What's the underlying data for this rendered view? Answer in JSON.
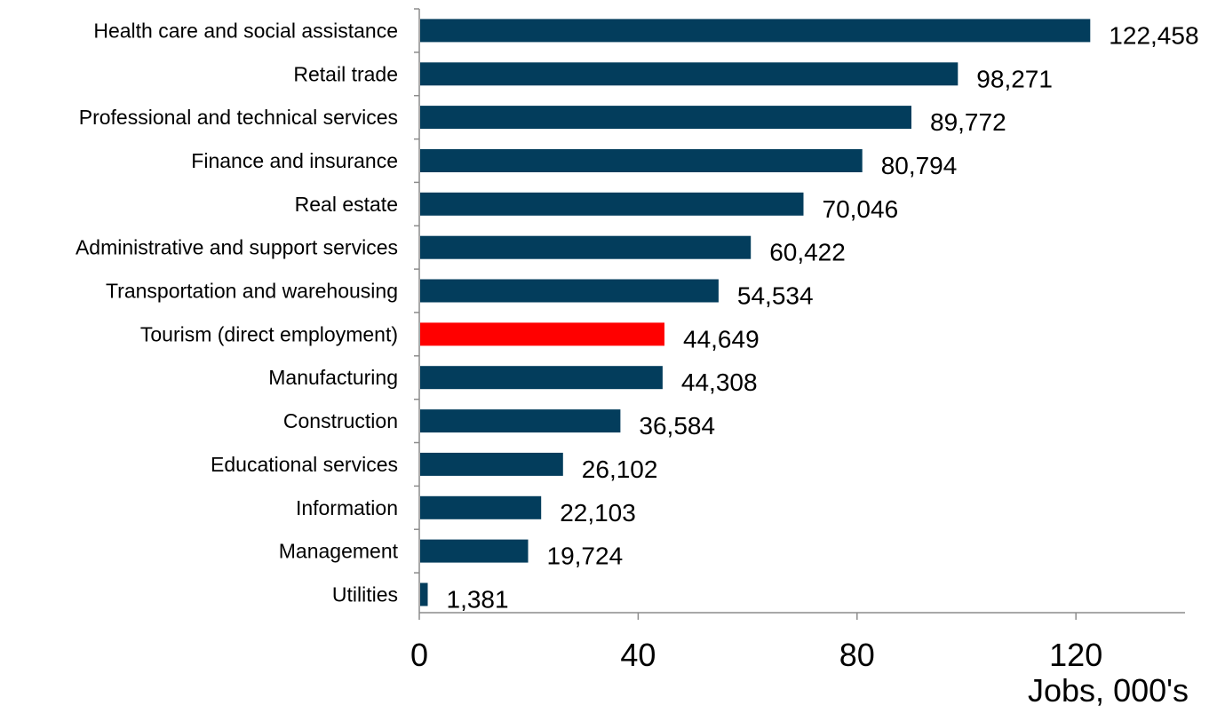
{
  "chart_data": {
    "type": "bar",
    "orientation": "horizontal",
    "categories": [
      "Health care and social assistance",
      "Retail trade",
      "Professional and technical services",
      "Finance and insurance",
      "Real estate",
      "Administrative and support services",
      "Transportation and warehousing",
      "Tourism (direct employment)",
      "Manufacturing",
      "Construction",
      "Educational services",
      "Information",
      "Management",
      "Utilities"
    ],
    "values": [
      122458,
      98271,
      89772,
      80794,
      70046,
      60422,
      54534,
      44649,
      44308,
      36584,
      26102,
      22103,
      19724,
      1381
    ],
    "value_labels": [
      "122,458",
      "98,271",
      "89,772",
      "80,794",
      "70,046",
      "60,422",
      "54,534",
      "44,649",
      "44,308",
      "36,584",
      "26,102",
      "22,103",
      "19,724",
      "1,381"
    ],
    "highlight_category": "Tourism (direct employment)",
    "colors": {
      "bar": "#033d5c",
      "highlight": "#ff0000",
      "axis": "#8c8c8c"
    },
    "x_axis": {
      "label": "Jobs, 000's",
      "ticks": [
        0,
        40,
        80,
        120
      ],
      "tick_labels": [
        "0",
        "40",
        "80",
        "120"
      ],
      "range": [
        0,
        140
      ],
      "value_scale": 1000
    },
    "title": "",
    "grid": false,
    "legend": "none"
  }
}
